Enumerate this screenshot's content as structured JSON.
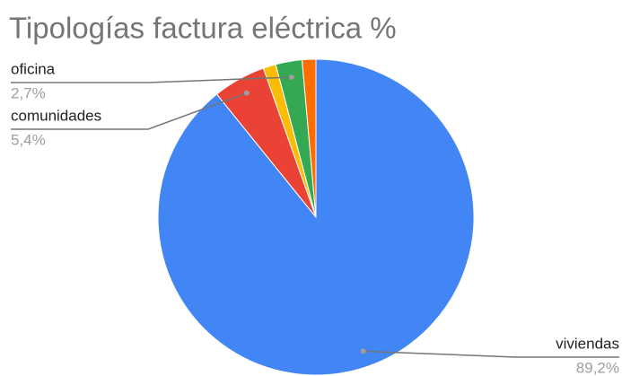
{
  "chart_data": {
    "type": "pie",
    "title": "Tipologías factura eléctrica %",
    "categories": [
      "viviendas",
      "comunidades",
      null,
      "oficina",
      null
    ],
    "values": [
      89.2,
      5.4,
      1.3,
      2.7,
      1.4
    ],
    "value_labels": [
      "89,2%",
      "5,4%",
      null,
      "2,7%",
      null
    ],
    "colors": [
      "#4285f4",
      "#ea4335",
      "#fbbc04",
      "#34a853",
      "#ff6d01"
    ]
  }
}
